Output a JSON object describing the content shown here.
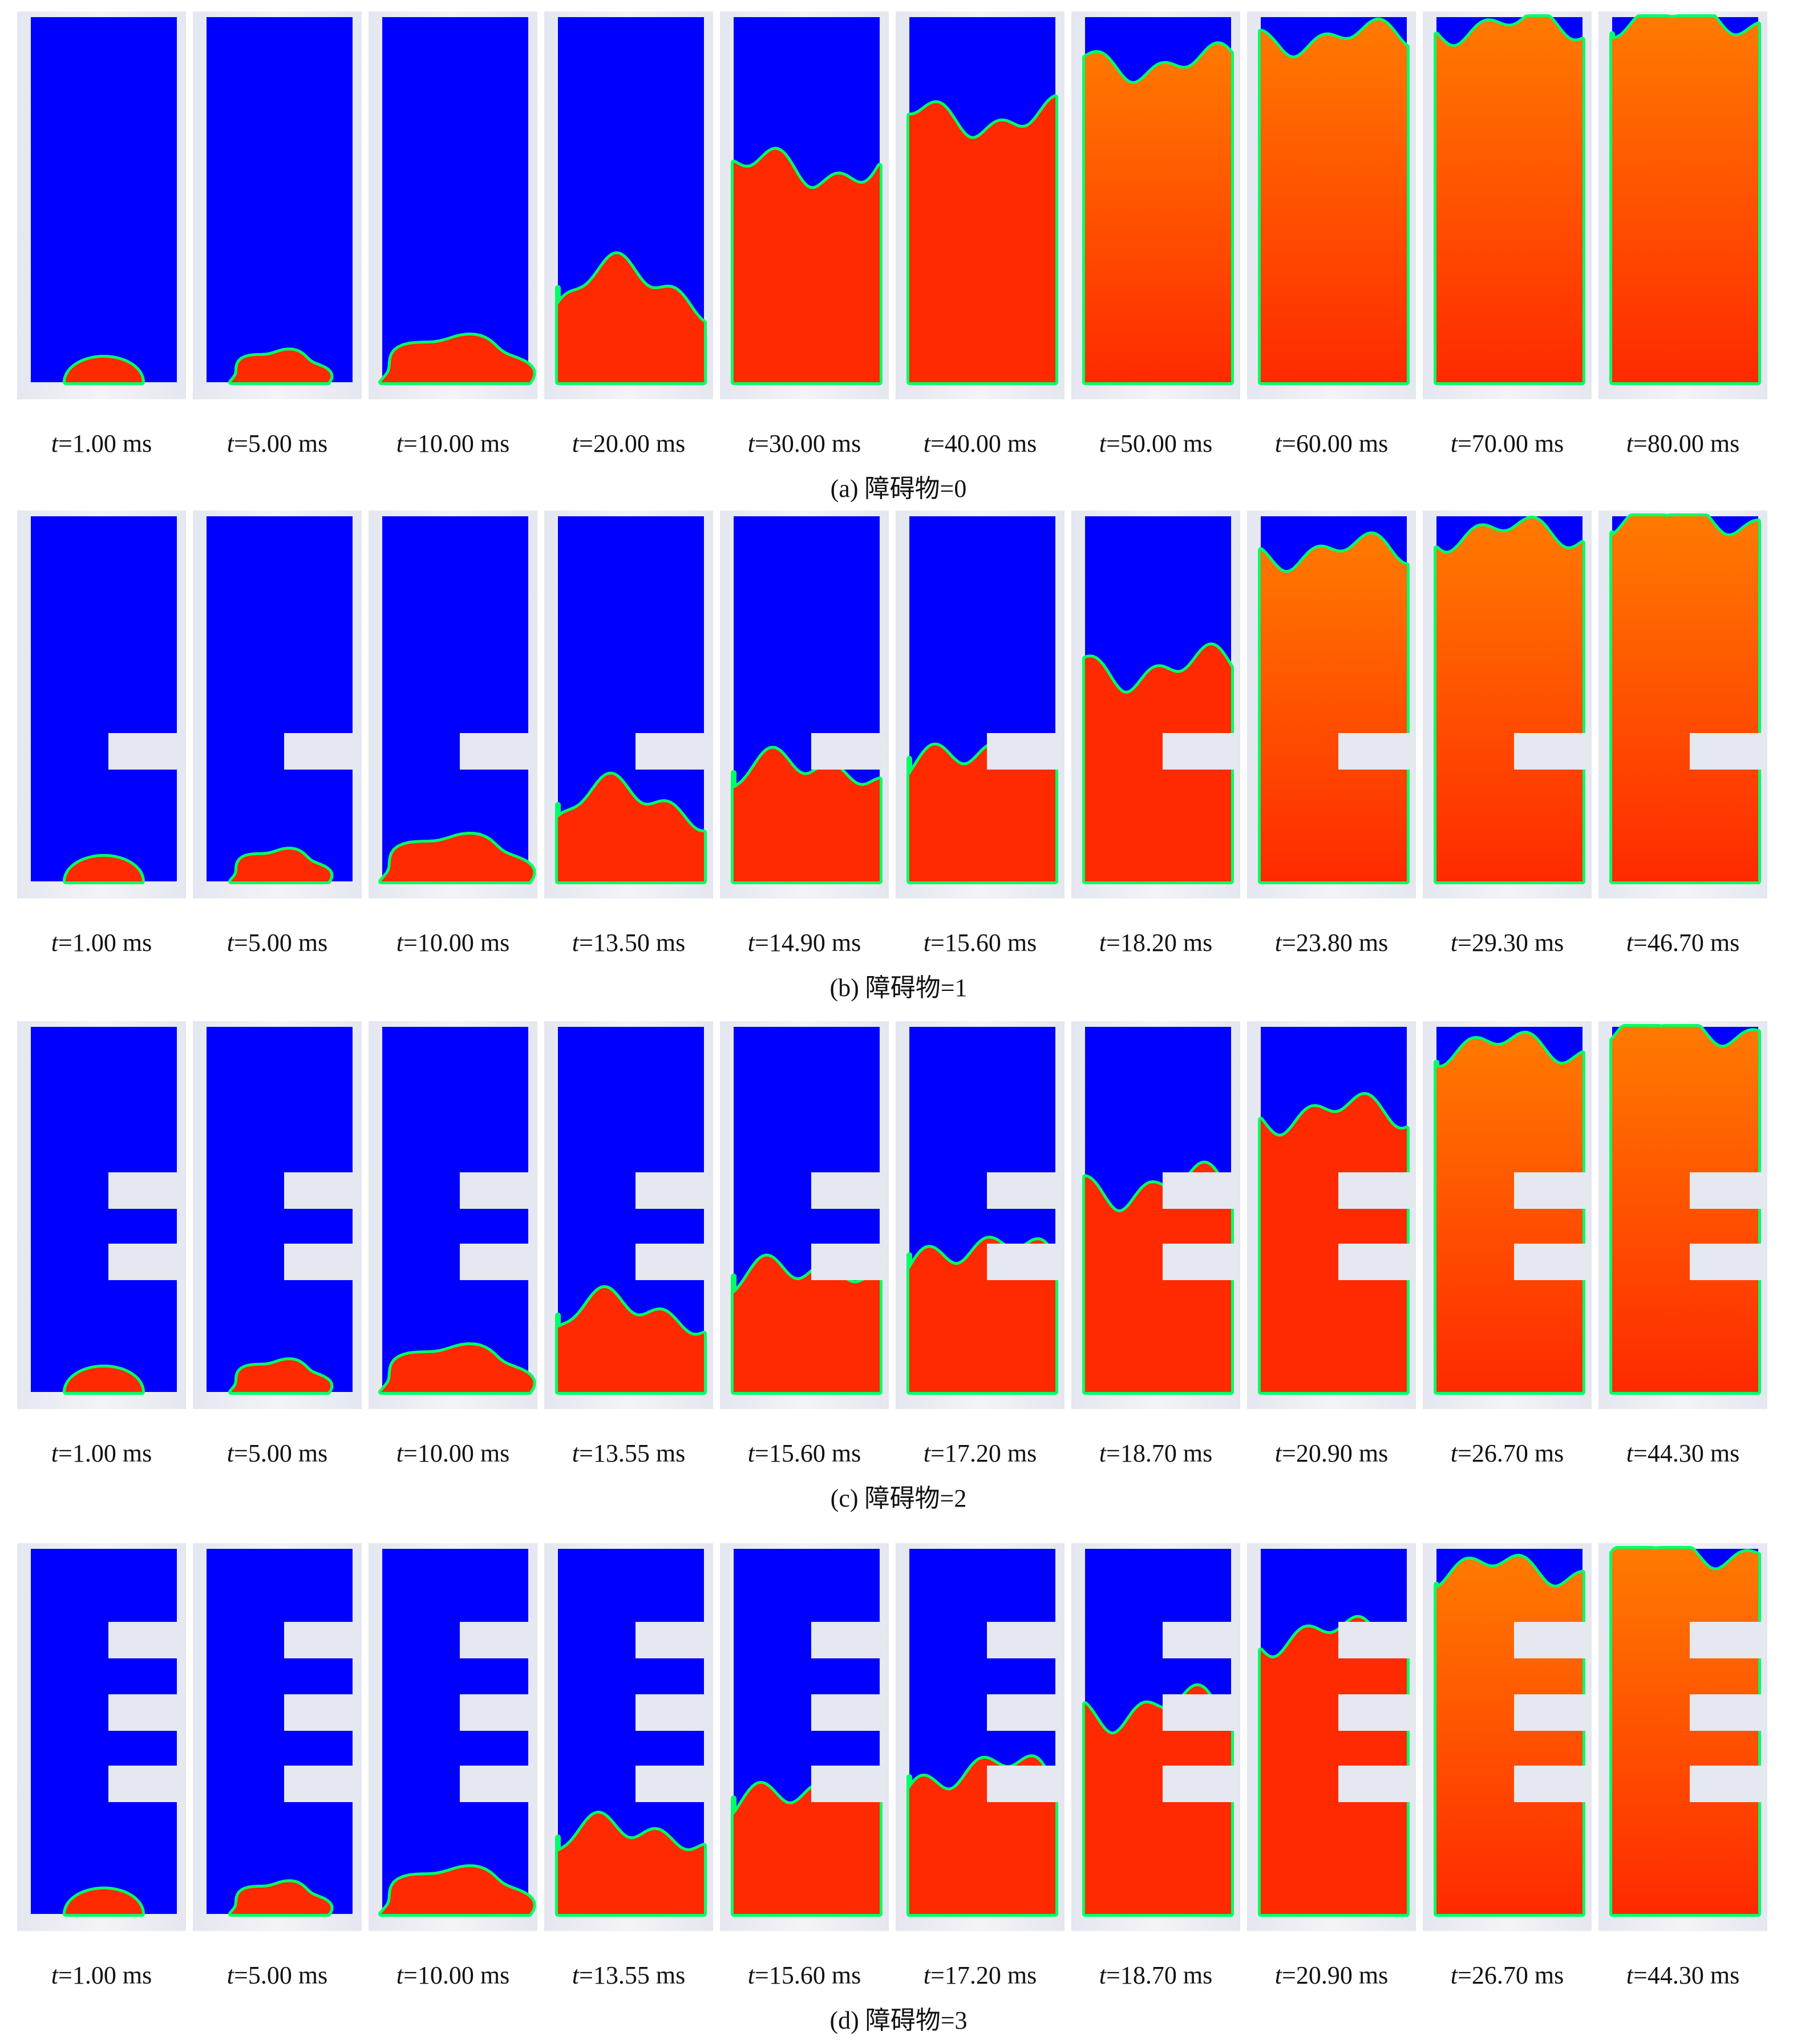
{
  "colors": {
    "background": "#0000ff",
    "fluid": "#ff2a00",
    "fluid_mid": "#ff7a00",
    "interface": "#00ff66",
    "wall": "#e6e8ef"
  },
  "time_var": "t",
  "time_unit": "ms",
  "panels": [
    {
      "caption": "(a) 障碍物=0",
      "obstacles": 0,
      "frames": [
        {
          "t": "=1.00 ms",
          "fill": 0.03,
          "progress": 0.0
        },
        {
          "t": "=5.00 ms",
          "fill": 0.05,
          "progress": 0.05
        },
        {
          "t": "=10.00 ms",
          "fill": 0.1,
          "progress": 0.1
        },
        {
          "t": "=20.00 ms",
          "fill": 0.3,
          "progress": 0.2
        },
        {
          "t": "=30.00 ms",
          "fill": 0.58,
          "progress": 0.35
        },
        {
          "t": "=40.00 ms",
          "fill": 0.72,
          "progress": 0.5
        },
        {
          "t": "=50.00 ms",
          "fill": 0.87,
          "progress": 0.7
        },
        {
          "t": "=60.00 ms",
          "fill": 0.94,
          "progress": 0.85
        },
        {
          "t": "=70.00 ms",
          "fill": 0.97,
          "progress": 0.95
        },
        {
          "t": "=80.00 ms",
          "fill": 0.99,
          "progress": 1.0
        }
      ]
    },
    {
      "caption": "(b) 障碍物=1",
      "obstacles": 1,
      "frames": [
        {
          "t": "=1.00 ms",
          "fill": 0.03,
          "progress": 0.0
        },
        {
          "t": "=5.00 ms",
          "fill": 0.05,
          "progress": 0.05
        },
        {
          "t": "=10.00 ms",
          "fill": 0.1,
          "progress": 0.1
        },
        {
          "t": "=13.50 ms",
          "fill": 0.25,
          "progress": 0.2
        },
        {
          "t": "=14.90 ms",
          "fill": 0.34,
          "progress": 0.3
        },
        {
          "t": "=15.60 ms",
          "fill": 0.38,
          "progress": 0.4
        },
        {
          "t": "=18.20 ms",
          "fill": 0.58,
          "progress": 0.55
        },
        {
          "t": "=23.80 ms",
          "fill": 0.9,
          "progress": 0.75
        },
        {
          "t": "=29.30 ms",
          "fill": 0.95,
          "progress": 0.9
        },
        {
          "t": "=46.70 ms",
          "fill": 0.99,
          "progress": 1.0
        }
      ]
    },
    {
      "caption": "(c) 障碍物=2",
      "obstacles": 2,
      "frames": [
        {
          "t": "=1.00 ms",
          "fill": 0.03,
          "progress": 0.0
        },
        {
          "t": "=5.00 ms",
          "fill": 0.05,
          "progress": 0.05
        },
        {
          "t": "=10.00 ms",
          "fill": 0.1,
          "progress": 0.1
        },
        {
          "t": "=13.55 ms",
          "fill": 0.25,
          "progress": 0.2
        },
        {
          "t": "=15.60 ms",
          "fill": 0.36,
          "progress": 0.3
        },
        {
          "t": "=17.20 ms",
          "fill": 0.42,
          "progress": 0.4
        },
        {
          "t": "=18.70 ms",
          "fill": 0.56,
          "progress": 0.55
        },
        {
          "t": "=20.90 ms",
          "fill": 0.76,
          "progress": 0.7
        },
        {
          "t": "=26.70 ms",
          "fill": 0.94,
          "progress": 0.9
        },
        {
          "t": "=44.30 ms",
          "fill": 0.99,
          "progress": 1.0
        }
      ]
    },
    {
      "caption": "(d) 障碍物=3",
      "obstacles": 3,
      "frames": [
        {
          "t": "=1.00 ms",
          "fill": 0.03,
          "progress": 0.0
        },
        {
          "t": "=5.00 ms",
          "fill": 0.05,
          "progress": 0.05
        },
        {
          "t": "=10.00 ms",
          "fill": 0.1,
          "progress": 0.1
        },
        {
          "t": "=13.55 ms",
          "fill": 0.25,
          "progress": 0.2
        },
        {
          "t": "=15.60 ms",
          "fill": 0.36,
          "progress": 0.3
        },
        {
          "t": "=17.20 ms",
          "fill": 0.42,
          "progress": 0.4
        },
        {
          "t": "=18.70 ms",
          "fill": 0.56,
          "progress": 0.55
        },
        {
          "t": "=20.90 ms",
          "fill": 0.76,
          "progress": 0.7
        },
        {
          "t": "=26.70 ms",
          "fill": 0.94,
          "progress": 0.9
        },
        {
          "t": "=44.30 ms",
          "fill": 0.99,
          "progress": 1.0
        }
      ]
    }
  ]
}
